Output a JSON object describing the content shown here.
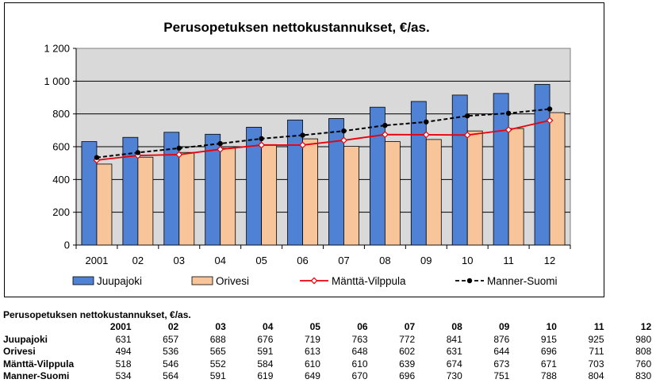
{
  "chart_data": {
    "type": "bar",
    "title": "Perusopetuksen nettokustannukset, €/as.",
    "categories": [
      "2001",
      "02",
      "03",
      "04",
      "05",
      "06",
      "07",
      "08",
      "09",
      "10",
      "11",
      "12"
    ],
    "ylim": [
      0,
      1200
    ],
    "yticks": [
      0,
      200,
      400,
      600,
      800,
      1000,
      1200
    ],
    "ytick_labels": [
      "0",
      "200",
      "400",
      "600",
      "800",
      "1 000",
      "1 200"
    ],
    "grid": true,
    "legend_position": "bottom",
    "series": [
      {
        "name": "Juupajoki",
        "kind": "bar",
        "color": "#4f81d4",
        "values": [
          631,
          657,
          688,
          676,
          719,
          763,
          772,
          841,
          876,
          915,
          925,
          980
        ]
      },
      {
        "name": "Orivesi",
        "kind": "bar",
        "color": "#f8c59b",
        "values": [
          494,
          536,
          565,
          591,
          613,
          648,
          602,
          631,
          644,
          696,
          711,
          808
        ]
      },
      {
        "name": "Mänttä-Vilppula",
        "kind": "line",
        "color": "#e8000b",
        "values": [
          518,
          546,
          552,
          584,
          610,
          610,
          639,
          674,
          673,
          671,
          703,
          760
        ]
      },
      {
        "name": "Manner-Suomi",
        "kind": "line",
        "color": "#000000",
        "values": [
          534,
          564,
          591,
          619,
          649,
          670,
          696,
          730,
          751,
          788,
          804,
          830
        ]
      }
    ]
  },
  "table": {
    "title": "Perusopetuksen nettokustannukset, €/as.",
    "headers": [
      "2001",
      "02",
      "03",
      "04",
      "05",
      "06",
      "07",
      "08",
      "09",
      "10",
      "11",
      "12"
    ],
    "rows": [
      {
        "label": "Juupajoki",
        "values": [
          "631",
          "657",
          "688",
          "676",
          "719",
          "763",
          "772",
          "841",
          "876",
          "915",
          "925",
          "980"
        ]
      },
      {
        "label": "Orivesi",
        "values": [
          "494",
          "536",
          "565",
          "591",
          "613",
          "648",
          "602",
          "631",
          "644",
          "696",
          "711",
          "808"
        ]
      },
      {
        "label": "Mänttä-Vilppula",
        "values": [
          "518",
          "546",
          "552",
          "584",
          "610",
          "610",
          "639",
          "674",
          "673",
          "671",
          "703",
          "760"
        ]
      },
      {
        "label": "Manner-Suomi",
        "values": [
          "534",
          "564",
          "591",
          "619",
          "649",
          "670",
          "696",
          "730",
          "751",
          "788",
          "804",
          "830"
        ]
      }
    ]
  }
}
